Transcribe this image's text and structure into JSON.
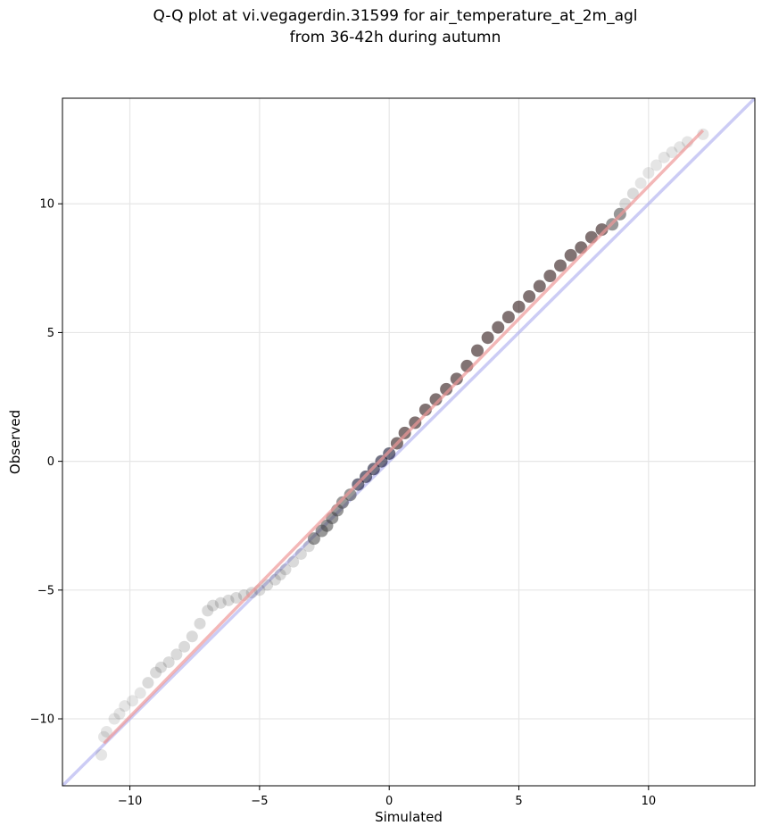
{
  "chart_data": {
    "type": "scatter",
    "title_lines": [
      "Q-Q plot at vi.vegagerdin.31599 for air_temperature_at_2m_agl",
      "from 36-42h during autumn"
    ],
    "xlabel": "Simulated",
    "ylabel": "Observed",
    "xlim": [
      -12.6,
      14.1
    ],
    "ylim": [
      -12.6,
      14.1
    ],
    "xticks": [
      -10,
      -5,
      0,
      5,
      10
    ],
    "yticks": [
      -10,
      -5,
      0,
      5,
      10
    ],
    "tick_labels": [
      "−10",
      "−5",
      "0",
      "5",
      "10"
    ],
    "grid": true,
    "reference_line": {
      "name": "1:1",
      "color": "#aaaaee",
      "x": [
        -12.6,
        14.1
      ],
      "y": [
        -12.6,
        14.1
      ]
    },
    "fit_line": {
      "name": "fit",
      "color": "#ee9999",
      "x": [
        -11.0,
        12.1
      ],
      "y": [
        -10.95,
        12.85
      ]
    },
    "quantiles": {
      "x": [
        -11.1,
        -11.0,
        -10.9,
        -10.6,
        -10.4,
        -10.2,
        -9.9,
        -9.6,
        -9.3,
        -9.0,
        -8.8,
        -8.5,
        -8.2,
        -7.9,
        -7.6,
        -7.3,
        -7.0,
        -6.8,
        -6.5,
        -6.2,
        -5.9,
        -5.6,
        -5.3,
        -5.0,
        -4.7,
        -4.4,
        -4.2,
        -4.0,
        -3.7,
        -3.4,
        -3.1,
        -2.9,
        -2.6,
        -2.4,
        -2.2,
        -2.0,
        -1.8,
        -1.5,
        -1.2,
        -0.9,
        -0.6,
        -0.3,
        0.0,
        0.3,
        0.6,
        1.0,
        1.4,
        1.8,
        2.2,
        2.6,
        3.0,
        3.4,
        3.8,
        4.2,
        4.6,
        5.0,
        5.4,
        5.8,
        6.2,
        6.6,
        7.0,
        7.4,
        7.8,
        8.2,
        8.6,
        8.9,
        9.1,
        9.4,
        9.7,
        10.0,
        10.3,
        10.6,
        10.9,
        11.2,
        11.5,
        12.1
      ],
      "y": [
        -11.4,
        -10.7,
        -10.5,
        -10.0,
        -9.8,
        -9.5,
        -9.3,
        -9.0,
        -8.6,
        -8.2,
        -8.0,
        -7.8,
        -7.5,
        -7.2,
        -6.8,
        -6.3,
        -5.8,
        -5.6,
        -5.5,
        -5.4,
        -5.3,
        -5.2,
        -5.1,
        -5.0,
        -4.8,
        -4.6,
        -4.4,
        -4.2,
        -3.9,
        -3.6,
        -3.3,
        -3.0,
        -2.7,
        -2.5,
        -2.2,
        -1.9,
        -1.6,
        -1.3,
        -0.9,
        -0.6,
        -0.3,
        0.0,
        0.3,
        0.7,
        1.1,
        1.5,
        2.0,
        2.4,
        2.8,
        3.2,
        3.7,
        4.3,
        4.8,
        5.2,
        5.6,
        6.0,
        6.4,
        6.8,
        7.2,
        7.6,
        8.0,
        8.3,
        8.7,
        9.0,
        9.2,
        9.6,
        10.0,
        10.4,
        10.8,
        11.2,
        11.5,
        11.8,
        12.0,
        12.2,
        12.4,
        12.7
      ]
    }
  }
}
